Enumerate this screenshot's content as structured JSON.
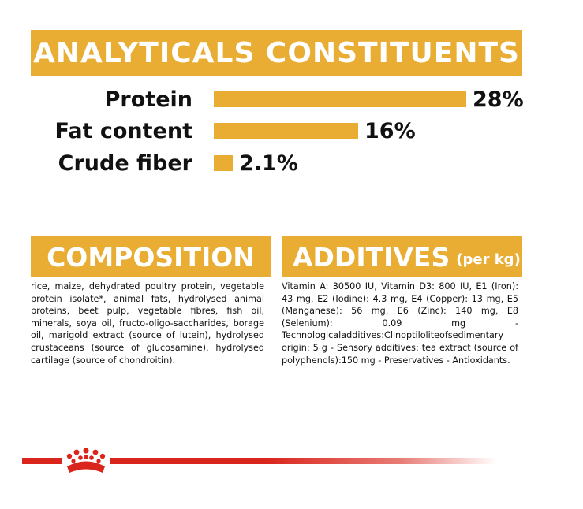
{
  "analytics": {
    "title": "ANALYTICALS CONSTITUENTS",
    "rows": [
      {
        "label": "Protein",
        "value_text": "28%",
        "value": 28
      },
      {
        "label": "Fat content",
        "value_text": "16%",
        "value": 16
      },
      {
        "label": "Crude fiber",
        "value_text": "2.1%",
        "value": 2.1
      }
    ]
  },
  "composition": {
    "title": "COMPOSITION",
    "text": "rice, maize, dehydrated poultry protein, vegetable protein isolate*, animal fats, hydrolysed animal proteins, beet pulp, vegetable fibres, fish oil, minerals, soya oil, fructo-oligo-saccharides, borage oil, marigold extract (source of lutein), hydrolysed crustaceans (source of glucosamine), hydrolysed cartilage (source of chondroitin)."
  },
  "additives": {
    "title": "ADDITIVES",
    "unit": "(per kg)",
    "text": "Vitamin A: 30500 IU, Vitamin D3: 800 IU, E1 (Iron): 43 mg, E2 (Iodine): 4.3 mg, E4 (Copper): 13 mg, E5 (Manganese): 56 mg, E6 (Zinc): 140 mg, E8 (Selenium): 0.09 mg - Technologicaladditives:Clinoptiloliteofsedimentary origin: 5 g - Sensory additives: tea extract (source of polyphenols):150 mg - Preservatives - Antioxidants."
  },
  "colors": {
    "accent": "#e8ad32",
    "brand_red": "#d9251b"
  },
  "footer": {
    "logo_icon": "royal-canin-crown-icon"
  }
}
